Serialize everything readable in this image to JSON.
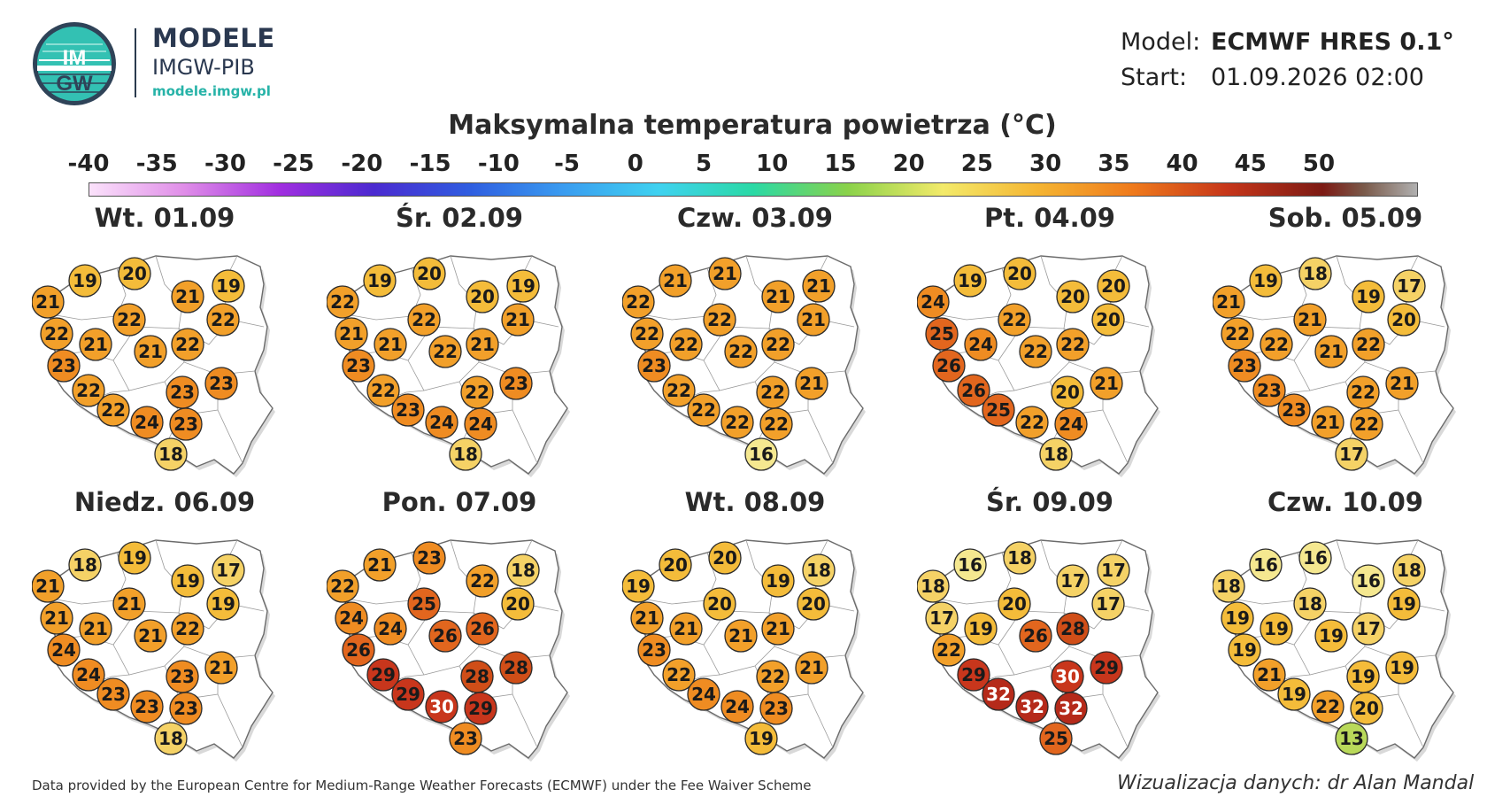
{
  "header": {
    "logo_text": "IMGW",
    "brand_title": "MODELE",
    "brand_subtitle": "IMGW-PIB",
    "brand_url": "modele.imgw.pl",
    "model_label": "Model:",
    "model_value": "ECMWF HRES 0.1°",
    "start_label": "Start:",
    "start_value": "01.09.2026 02:00"
  },
  "title": "Maksymalna temperatura powietrza (°C)",
  "scale": {
    "ticks": [
      "-40",
      "-35",
      "-30",
      "-25",
      "-20",
      "-15",
      "-10",
      "-5",
      "0",
      "5",
      "10",
      "15",
      "20",
      "25",
      "30",
      "35",
      "40",
      "45",
      "50"
    ]
  },
  "colors": {
    "map_fill": "#ffffff",
    "border": "#6b6b6b",
    "t13": "#b9d95a",
    "t16": "#f5e890",
    "t18": "#f5d266",
    "t20": "#f4bc3a",
    "t22": "#f2a02a",
    "t24": "#ef8c22",
    "t26": "#e2661e",
    "t28": "#d04e18",
    "t30": "#c8361c",
    "t32": "#b52a1a"
  },
  "panels": [
    {
      "label": "Wt. 01.09",
      "values": [
        19,
        20,
        19,
        21,
        21,
        22,
        22,
        22,
        21,
        23,
        21,
        22,
        23,
        22,
        23,
        22,
        23,
        24,
        18
      ]
    },
    {
      "label": "Śr. 02.09",
      "values": [
        19,
        20,
        19,
        22,
        20,
        21,
        21,
        22,
        21,
        23,
        22,
        21,
        23,
        22,
        22,
        23,
        24,
        24,
        18
      ]
    },
    {
      "label": "Czw. 03.09",
      "values": [
        21,
        21,
        21,
        22,
        21,
        21,
        22,
        22,
        22,
        23,
        22,
        22,
        21,
        22,
        22,
        22,
        22,
        22,
        16
      ]
    },
    {
      "label": "Pt. 04.09",
      "values": [
        19,
        20,
        20,
        24,
        20,
        20,
        25,
        22,
        24,
        26,
        22,
        22,
        21,
        26,
        20,
        25,
        24,
        22,
        18
      ]
    },
    {
      "label": "Sob. 05.09",
      "values": [
        19,
        18,
        17,
        21,
        19,
        20,
        22,
        21,
        22,
        23,
        21,
        22,
        21,
        23,
        22,
        23,
        22,
        21,
        17
      ]
    },
    {
      "label": "Niedz. 06.09",
      "values": [
        18,
        19,
        17,
        21,
        19,
        19,
        21,
        21,
        21,
        24,
        21,
        22,
        21,
        24,
        23,
        23,
        23,
        23,
        18
      ]
    },
    {
      "label": "Pon. 07.09",
      "values": [
        21,
        23,
        18,
        22,
        22,
        20,
        24,
        25,
        24,
        26,
        26,
        26,
        28,
        29,
        28,
        29,
        29,
        30,
        23
      ]
    },
    {
      "label": "Wt. 08.09",
      "values": [
        20,
        20,
        18,
        19,
        19,
        20,
        21,
        20,
        21,
        23,
        21,
        21,
        21,
        22,
        22,
        24,
        23,
        24,
        19
      ]
    },
    {
      "label": "Śr. 09.09",
      "values": [
        16,
        18,
        17,
        18,
        17,
        17,
        17,
        20,
        19,
        22,
        26,
        28,
        29,
        29,
        30,
        32,
        32,
        32,
        25
      ]
    },
    {
      "label": "Czw. 10.09",
      "values": [
        16,
        16,
        18,
        18,
        16,
        19,
        19,
        18,
        19,
        19,
        19,
        17,
        19,
        21,
        19,
        19,
        20,
        22,
        13
      ]
    }
  ],
  "footer": {
    "source": "Data provided by the European Centre for Medium-Range Weather Forecasts (ECMWF) under the Fee Waiver Scheme",
    "credit": "Wizualizacja danych: dr Alan Mandal"
  }
}
